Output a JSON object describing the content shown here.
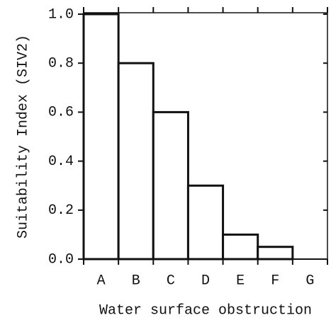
{
  "chart_data": {
    "type": "bar",
    "xlabel": "Water surface obstruction",
    "ylabel": "Suitability Index (SIV2)",
    "categories": [
      "A",
      "B",
      "C",
      "D",
      "E",
      "F",
      "G"
    ],
    "values": [
      1.0,
      0.8,
      0.6,
      0.3,
      0.1,
      0.05,
      0
    ],
    "color": "#111111",
    "ylim": [
      0,
      1.0
    ],
    "yticks": [
      {
        "value": 0,
        "label": "0.0"
      },
      0.2,
      0.4,
      0.6,
      0.8,
      {
        "value": 1.0,
        "label": "1.0"
      }
    ]
  }
}
